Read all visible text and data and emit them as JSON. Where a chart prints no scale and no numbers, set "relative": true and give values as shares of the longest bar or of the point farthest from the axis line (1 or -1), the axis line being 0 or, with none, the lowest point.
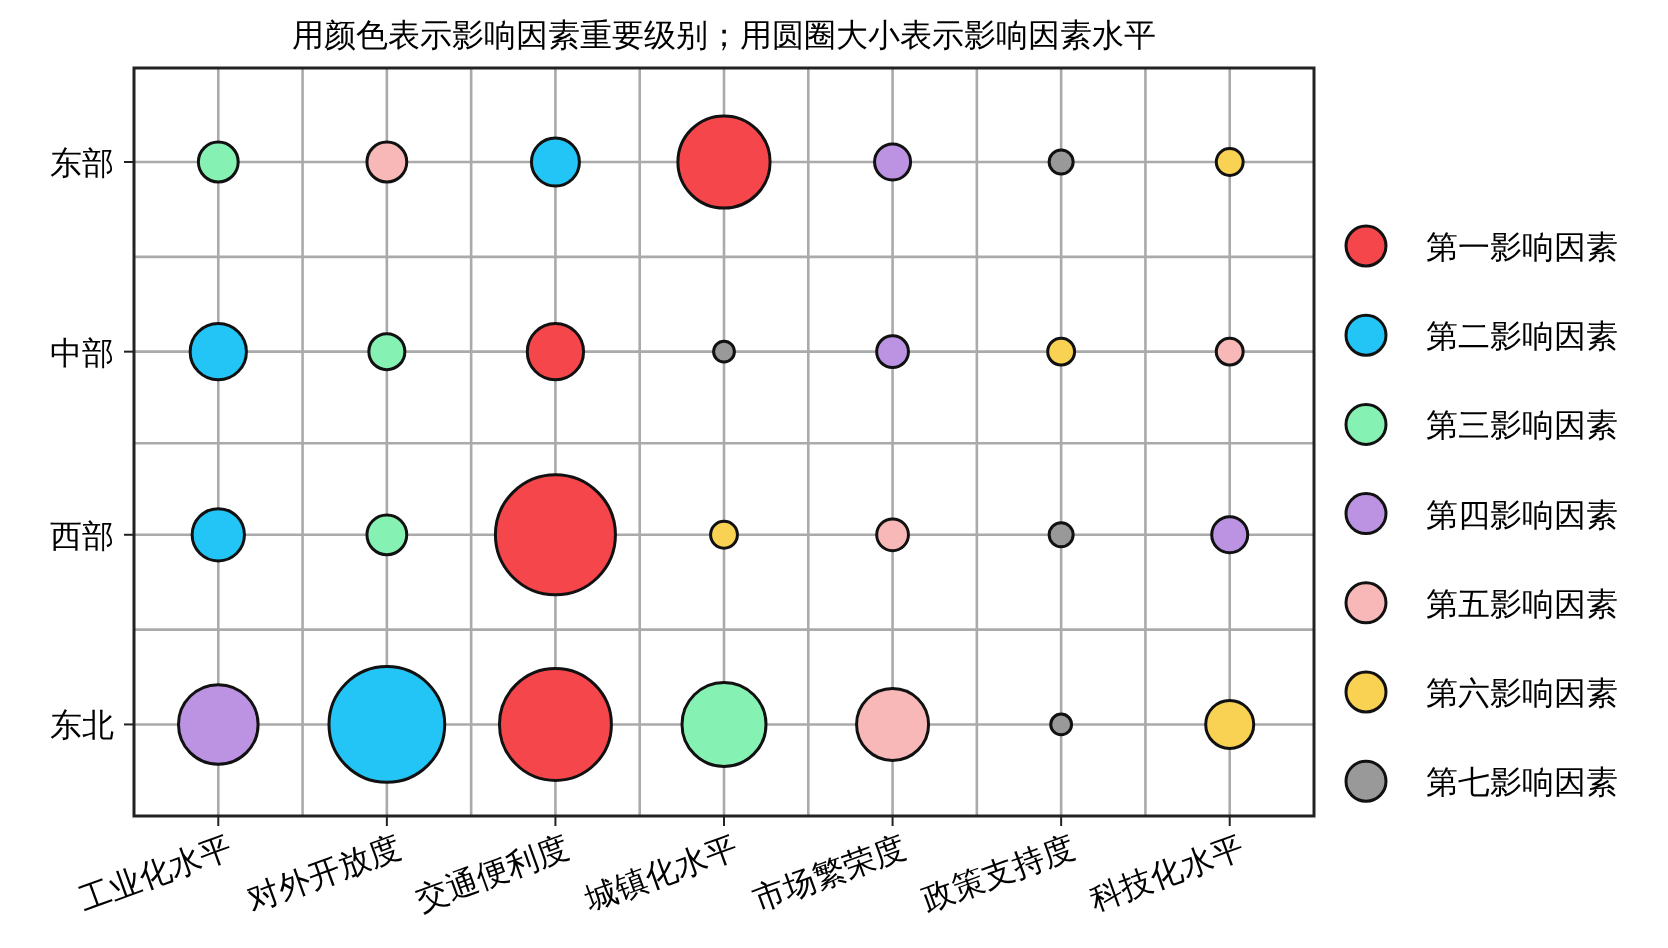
{
  "chart_data": {
    "type": "bubble",
    "title": "用颜色表示影响因素重要级别；用圆圈大小表示影响因素水平",
    "categories": [
      "工业化水平",
      "对外开放度",
      "交通便利度",
      "城镇化水平",
      "市场繁荣度",
      "政策支持度",
      "科技化水平"
    ],
    "relative": true,
    "annotations": [
      "东部",
      "中部",
      "西部",
      "东北"
    ],
    "grid": true,
    "legend": "right",
    "series": [
      {
        "name": "第一影响因素",
        "color": "#f5474b",
        "x": [
          "城镇化水平",
          "交通便利度",
          "交通便利度",
          "交通便利度"
        ],
        "values": [
          1,
          0.71,
          0.43,
          0.14
        ],
        "sizes": [
          0.59,
          0.22,
          1,
          0.87
        ]
      },
      {
        "name": "第二影响因素",
        "color": "#23c4f6",
        "x": [
          "交通便利度",
          "工业化水平",
          "工业化水平",
          "对外开放度"
        ],
        "values": [
          1,
          0.71,
          0.43,
          0.14
        ],
        "sizes": [
          0.16,
          0.22,
          0.19,
          0.93
        ]
      },
      {
        "name": "第三影响因素",
        "color": "#85f2b4",
        "x": [
          "工业化水平",
          "对外开放度",
          "对外开放度",
          "城镇化水平"
        ],
        "values": [
          1,
          0.71,
          0.43,
          0.14
        ],
        "sizes": [
          0.11,
          0.09,
          0.11,
          0.49
        ]
      },
      {
        "name": "第四影响因素",
        "color": "#bb93e2",
        "x": [
          "市场繁荣度",
          "市场繁荣度",
          "科技化水平",
          "工业化水平"
        ],
        "values": [
          1,
          0.71,
          0.43,
          0.14
        ],
        "sizes": [
          0.09,
          0.07,
          0.09,
          0.44
        ]
      },
      {
        "name": "第五影响因素",
        "color": "#f9b8b8",
        "x": [
          "对外开放度",
          "科技化水平",
          "市场繁荣度",
          "市场繁荣度"
        ],
        "values": [
          1,
          0.71,
          0.43,
          0.14
        ],
        "sizes": [
          0.11,
          0.05,
          0.07,
          0.36
        ]
      },
      {
        "name": "第六影响因素",
        "color": "#f9d254",
        "x": [
          "科技化水平",
          "政策支持度",
          "城镇化水平",
          "科技化水平"
        ],
        "values": [
          1,
          0.71,
          0.43,
          0.14
        ],
        "sizes": [
          0.05,
          0.05,
          0.05,
          0.16
        ]
      },
      {
        "name": "第七影响因素",
        "color": "#999999",
        "x": [
          "政策支持度",
          "城镇化水平",
          "政策支持度",
          "政策支持度"
        ],
        "values": [
          1,
          0.71,
          0.43,
          0.14
        ],
        "sizes": [
          0.04,
          0.03,
          0.04,
          0.03
        ]
      }
    ]
  }
}
